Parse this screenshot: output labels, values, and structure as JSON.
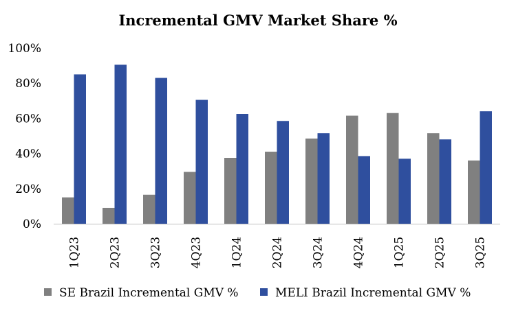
{
  "chart_data": {
    "type": "bar",
    "title": "Incremental GMV Market Share %",
    "xlabel": "",
    "ylabel": "",
    "categories": [
      "1Q23",
      "2Q23",
      "3Q23",
      "4Q23",
      "1Q24",
      "2Q24",
      "3Q24",
      "4Q24",
      "1Q25",
      "2Q25",
      "3Q25"
    ],
    "series": [
      {
        "name": "SE Brazil Incremental GMV %",
        "color": "#808080",
        "values": [
          15,
          9,
          16.5,
          29.5,
          37.5,
          41,
          48.5,
          61.5,
          63,
          51.5,
          36
        ]
      },
      {
        "name": "MELI Brazil Incremental GMV %",
        "color": "#2F4F9E",
        "values": [
          85,
          90.5,
          83,
          70.5,
          62.5,
          58.5,
          51.5,
          38.5,
          37,
          48,
          64
        ]
      }
    ],
    "ylim": [
      0,
      100
    ],
    "yticks": [
      "0%",
      "20%",
      "40%",
      "60%",
      "80%",
      "100%"
    ],
    "ytick_values": [
      0,
      20,
      40,
      60,
      80,
      100
    ],
    "grid": false,
    "legend_position": "bottom"
  }
}
